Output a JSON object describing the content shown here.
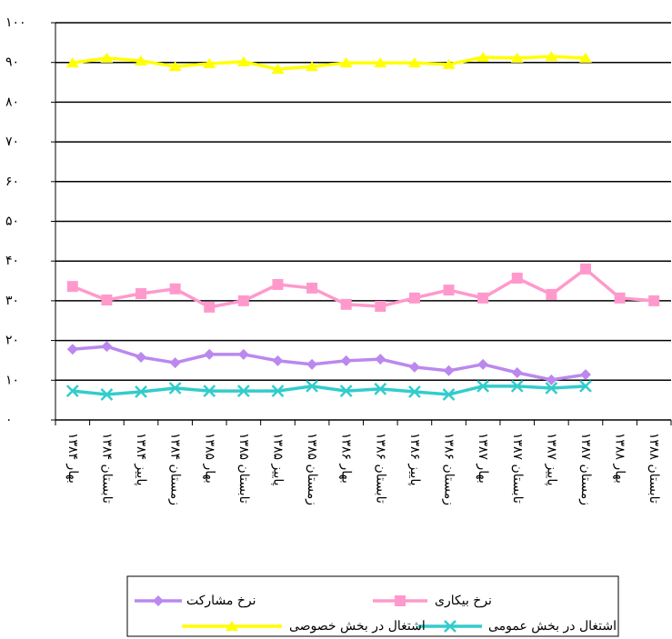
{
  "chart_data": {
    "type": "line",
    "categories": [
      "بهار ۱۳۸۴",
      "تابستان ۱۳۸۴",
      "پاییز ۱۳۸۴",
      "زمستان ۱۳۸۴",
      "بهار ۱۳۸۵",
      "تابستان ۱۳۸۵",
      "پاییز ۱۳۸۵",
      "زمستان ۱۳۸۵",
      "بهار ۱۳۸۶",
      "تابستان ۱۳۸۶",
      "پاییز ۱۳۸۶",
      "زمستان ۱۳۸۶",
      "بهار ۱۳۸۷",
      "تابستان ۱۳۸۷",
      "پاییز ۱۳۸۷",
      "زمستان ۱۳۸۷",
      "بهار ۱۳۸۸",
      "تابستان ۱۳۸۸"
    ],
    "series": [
      {
        "name": "نرخ بیکاری",
        "color": "#ff99cc",
        "marker": "square",
        "values": [
          33.6,
          30.2,
          31.8,
          33.0,
          28.4,
          30.0,
          34.1,
          33.2,
          29.1,
          28.6,
          30.7,
          32.7,
          30.7,
          35.7,
          31.6,
          38.0,
          30.7,
          30.0
        ]
      },
      {
        "name": "نرخ مشارکت",
        "color": "#bb88ee",
        "marker": "diamond",
        "values": [
          17.8,
          18.5,
          15.8,
          14.4,
          16.5,
          16.5,
          14.9,
          14.0,
          14.9,
          15.3,
          13.3,
          12.4,
          14.0,
          11.9,
          10.1,
          11.4,
          null,
          null
        ]
      },
      {
        "name": "اشتغال در بخش عمومی",
        "color": "#33cccc",
        "marker": "x",
        "values": [
          7.3,
          6.4,
          7.1,
          8.0,
          7.3,
          7.3,
          7.3,
          8.5,
          7.3,
          7.8,
          7.1,
          6.4,
          8.5,
          8.5,
          8.0,
          8.5,
          null,
          null
        ]
      },
      {
        "name": "اشتغال در بخش خصوصی",
        "color": "#ffff00",
        "marker": "triangle",
        "values": [
          89.9,
          91.1,
          90.4,
          89.0,
          89.7,
          90.2,
          88.3,
          89.0,
          89.9,
          89.9,
          89.9,
          89.5,
          91.3,
          91.1,
          91.5,
          91.1,
          null,
          null
        ]
      }
    ],
    "ylim": [
      0,
      100
    ],
    "yticks": [
      {
        "value": 0,
        "label": "۰"
      },
      {
        "value": 10,
        "label": "۱۰"
      },
      {
        "value": 20,
        "label": "۲۰"
      },
      {
        "value": 30,
        "label": "۳۰"
      },
      {
        "value": 40,
        "label": "۴۰"
      },
      {
        "value": 50,
        "label": "۵۰"
      },
      {
        "value": 60,
        "label": "۶۰"
      },
      {
        "value": 70,
        "label": "۷۰"
      },
      {
        "value": 80,
        "label": "۸۰"
      },
      {
        "value": 90,
        "label": "۹۰"
      },
      {
        "value": 100,
        "label": "۱۰۰"
      }
    ],
    "grid": true
  }
}
